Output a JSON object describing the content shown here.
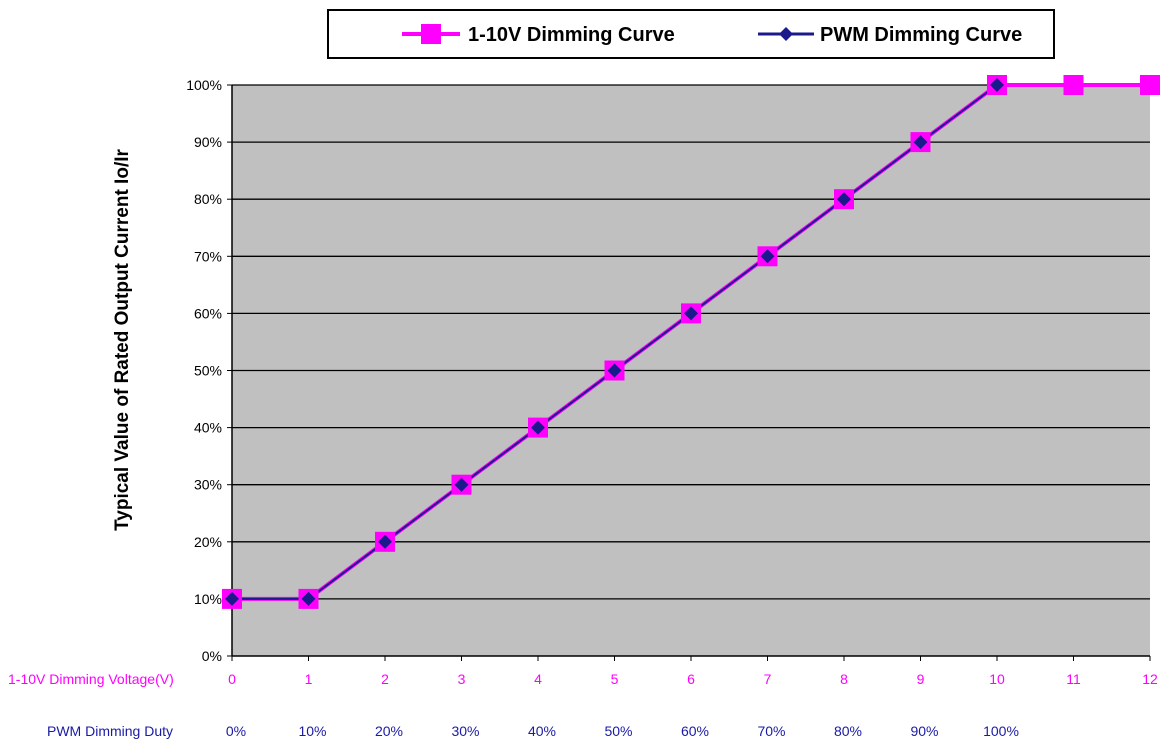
{
  "chart_data": {
    "type": "line",
    "ylabel": "Typical Value of Rated Output Current Io/Ir",
    "ylim": [
      0,
      100
    ],
    "y_ticks": [
      "0%",
      "10%",
      "20%",
      "30%",
      "40%",
      "50%",
      "60%",
      "70%",
      "80%",
      "90%",
      "100%"
    ],
    "x_axis_primary": {
      "label": "1-10V Dimming Voltage(V)",
      "ticks": [
        "0",
        "1",
        "2",
        "3",
        "4",
        "5",
        "6",
        "7",
        "8",
        "9",
        "10",
        "11",
        "12"
      ],
      "color": "#ff00ff"
    },
    "x_axis_secondary": {
      "label": "PWM Dimming Duty",
      "ticks": [
        "0%",
        "10%",
        "20%",
        "30%",
        "40%",
        "50%",
        "60%",
        "70%",
        "80%",
        "90%",
        "100%"
      ],
      "color": "#1a1aa6"
    },
    "xlim": [
      0,
      12
    ],
    "series": [
      {
        "name": "1-10V Dimming Curve",
        "color": "#ff00ff",
        "marker": "square",
        "x": [
          0,
          1,
          2,
          3,
          4,
          5,
          6,
          7,
          8,
          9,
          10,
          11,
          12
        ],
        "y": [
          10,
          10,
          20,
          30,
          40,
          50,
          60,
          70,
          80,
          90,
          100,
          100,
          100
        ]
      },
      {
        "name": "PWM Dimming Curve",
        "color": "#1a1a8c",
        "marker": "diamond",
        "x": [
          0,
          1,
          2,
          3,
          4,
          5,
          6,
          7,
          8,
          9,
          10
        ],
        "y": [
          10,
          10,
          20,
          30,
          40,
          50,
          60,
          70,
          80,
          90,
          100
        ]
      }
    ],
    "legend_position": "top",
    "grid": "horizontal",
    "plot_background": "#c0c0c0"
  }
}
